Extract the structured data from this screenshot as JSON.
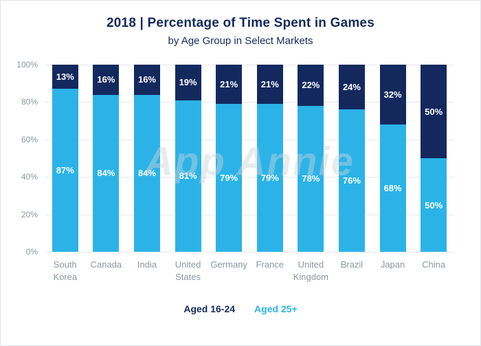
{
  "title": "2018 | Percentage of Time Spent in Games",
  "subtitle": "by Age Group in Select Markets",
  "watermark": "App Annie",
  "colors": {
    "navy": "#13295E",
    "cyan": "#2BB3E8",
    "grid": "#E4E8EC",
    "axis_text": "#8C96A0",
    "title_text": "#13295E",
    "background": "#FFFFFF"
  },
  "y_axis": {
    "min": 0,
    "max": 100,
    "ticks": [
      "100%",
      "80%",
      "60%",
      "40%",
      "20%",
      "0%"
    ]
  },
  "legend": [
    {
      "label": "Aged 16-24",
      "color": "#13295E"
    },
    {
      "label": "Aged 25+",
      "color": "#2BB3E8"
    }
  ],
  "chart_data": {
    "type": "bar",
    "stacked": true,
    "title": "2018 | Percentage of Time Spent in Games",
    "subtitle": "by Age Group in Select Markets",
    "xlabel": "",
    "ylabel": "",
    "ylim": [
      0,
      100
    ],
    "grid": true,
    "legend_position": "bottom",
    "categories": [
      "South Korea",
      "Canada",
      "India",
      "United States",
      "Germany",
      "France",
      "United Kingdom",
      "Brazil",
      "Japan",
      "China"
    ],
    "series": [
      {
        "name": "Aged 16-24",
        "color": "#13295E",
        "values": [
          13,
          16,
          16,
          19,
          21,
          21,
          22,
          24,
          32,
          50
        ]
      },
      {
        "name": "Aged 25+",
        "color": "#2BB3E8",
        "values": [
          87,
          84,
          84,
          81,
          79,
          79,
          78,
          76,
          68,
          50
        ]
      }
    ]
  }
}
